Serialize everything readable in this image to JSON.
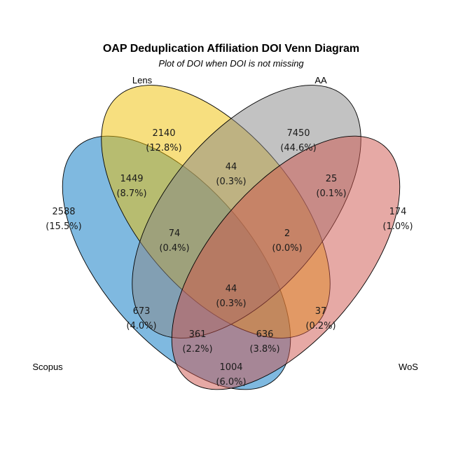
{
  "title": "OAP Deduplication Affiliation DOI Venn Diagram",
  "subtitle": "Plot of DOI when DOI is not missing",
  "sets": [
    {
      "key": "scopus",
      "name": "Scopus",
      "color": "#0073C2"
    },
    {
      "key": "lens",
      "name": "Lens",
      "color": "#EFC000"
    },
    {
      "key": "aa",
      "name": "AA",
      "color": "#868686"
    },
    {
      "key": "wos",
      "name": "WoS",
      "color": "#CD534C"
    }
  ],
  "regions": [
    {
      "key": "scopus_only",
      "sets": [
        "Scopus"
      ],
      "count": "2588",
      "percent": "(15.5%)"
    },
    {
      "key": "lens_only",
      "sets": [
        "Lens"
      ],
      "count": "2140",
      "percent": "(12.8%)"
    },
    {
      "key": "aa_only",
      "sets": [
        "AA"
      ],
      "count": "7450",
      "percent": "(44.6%)"
    },
    {
      "key": "wos_only",
      "sets": [
        "WoS"
      ],
      "count": "174",
      "percent": "(1.0%)"
    },
    {
      "key": "scopus_lens",
      "sets": [
        "Scopus",
        "Lens"
      ],
      "count": "1449",
      "percent": "(8.7%)"
    },
    {
      "key": "lens_aa",
      "sets": [
        "Lens",
        "AA"
      ],
      "count": "44",
      "percent": "(0.3%)"
    },
    {
      "key": "aa_wos",
      "sets": [
        "AA",
        "WoS"
      ],
      "count": "25",
      "percent": "(0.1%)"
    },
    {
      "key": "scopus_lens_aa",
      "sets": [
        "Scopus",
        "Lens",
        "AA"
      ],
      "count": "74",
      "percent": "(0.4%)"
    },
    {
      "key": "lens_aa_wos",
      "sets": [
        "Lens",
        "AA",
        "WoS"
      ],
      "count": "2",
      "percent": "(0.0%)"
    },
    {
      "key": "all_four",
      "sets": [
        "Scopus",
        "Lens",
        "AA",
        "WoS"
      ],
      "count": "44",
      "percent": "(0.3%)"
    },
    {
      "key": "scopus_aa",
      "sets": [
        "Scopus",
        "AA"
      ],
      "count": "673",
      "percent": "(4.0%)"
    },
    {
      "key": "lens_wos",
      "sets": [
        "Lens",
        "WoS"
      ],
      "count": "37",
      "percent": "(0.2%)"
    },
    {
      "key": "scopus_aa_wos",
      "sets": [
        "Scopus",
        "AA",
        "WoS"
      ],
      "count": "361",
      "percent": "(2.2%)"
    },
    {
      "key": "scopus_lens_wos",
      "sets": [
        "Scopus",
        "Lens",
        "WoS"
      ],
      "count": "636",
      "percent": "(3.8%)"
    },
    {
      "key": "scopus_wos",
      "sets": [
        "Scopus",
        "WoS"
      ],
      "count": "1004",
      "percent": "(6.0%)"
    }
  ]
}
